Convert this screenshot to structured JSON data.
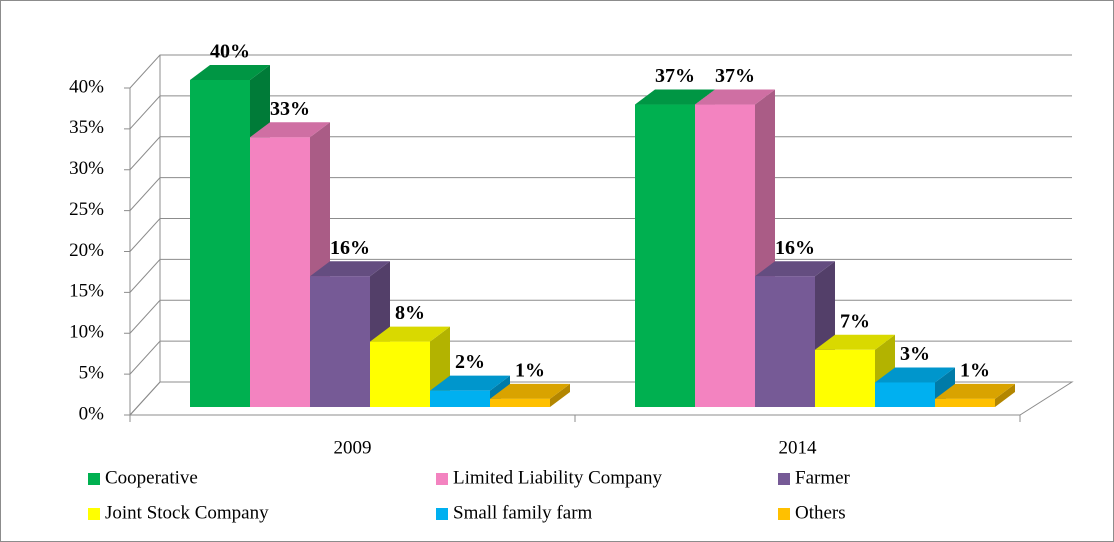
{
  "chart_data": {
    "type": "bar3d",
    "categories": [
      "2009",
      "2014"
    ],
    "series": [
      {
        "name": "Cooperative",
        "color": "#00b050",
        "values": [
          40,
          37
        ],
        "value_labels": [
          "40%",
          "37%"
        ]
      },
      {
        "name": "Limited Liability Company",
        "color": "#f383c0",
        "values": [
          33,
          37
        ],
        "value_labels": [
          "33%",
          "37%"
        ]
      },
      {
        "name": "Farmer",
        "color": "#765a96",
        "values": [
          16,
          16
        ],
        "value_labels": [
          "16%",
          "16%"
        ]
      },
      {
        "name": "Joint Stock Company",
        "color": "#ffff00",
        "values": [
          8,
          7
        ],
        "value_labels": [
          "8%",
          "7%"
        ]
      },
      {
        "name": "Small family farm",
        "color": "#00b0f0",
        "values": [
          2,
          3
        ],
        "value_labels": [
          "2%",
          "3%"
        ]
      },
      {
        "name": "Others",
        "color": "#ffc000",
        "values": [
          1,
          1
        ],
        "value_labels": [
          "1%",
          "1%"
        ]
      }
    ],
    "ylim": [
      0,
      40
    ],
    "yticks": [
      {
        "value": 0,
        "label": "0%"
      },
      {
        "value": 5,
        "label": "5%"
      },
      {
        "value": 10,
        "label": "10%"
      },
      {
        "value": 15,
        "label": "15%"
      },
      {
        "value": 20,
        "label": "20%"
      },
      {
        "value": 25,
        "label": "25%"
      },
      {
        "value": 30,
        "label": "30%"
      },
      {
        "value": 35,
        "label": "35%"
      },
      {
        "value": 40,
        "label": "40%"
      }
    ],
    "grid": true
  }
}
